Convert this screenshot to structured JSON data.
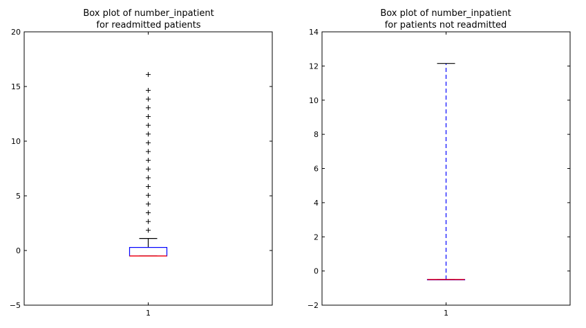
{
  "chart_data": [
    {
      "type": "box",
      "title": "Box plot of number_inpatient\nfor readmitted patients",
      "xticks": [
        "1"
      ],
      "ylim": [
        -5,
        20
      ],
      "yticks": [
        -5,
        0,
        5,
        10,
        15,
        20
      ],
      "box": {
        "whisker_low": -0.5,
        "q1": -0.5,
        "median": -0.5,
        "q3": 0.28,
        "whisker_high": 1.1
      },
      "outliers": [
        1.85,
        2.65,
        3.45,
        4.25,
        5.05,
        5.85,
        6.65,
        7.45,
        8.25,
        9.05,
        9.85,
        10.65,
        11.45,
        12.25,
        13.05,
        13.85,
        14.65,
        16.1
      ],
      "colors": {
        "box": "#0000ff",
        "median": "#ff0000",
        "whisker": "#000000",
        "cap": "#000000",
        "outlier": "#000000"
      }
    },
    {
      "type": "box",
      "title": "Box plot of number_inpatient\nfor patients not readmitted",
      "xticks": [
        "1"
      ],
      "ylim": [
        -2,
        14
      ],
      "yticks": [
        -2,
        0,
        2,
        4,
        6,
        8,
        10,
        12,
        14
      ],
      "box": {
        "whisker_low": -0.5,
        "q1": -0.5,
        "median": -0.5,
        "q3": -0.5,
        "whisker_high": 12.15
      },
      "outliers": [],
      "colors": {
        "box": "#0000ff",
        "median": "#ff0000",
        "whisker": "#0000ff",
        "cap": "#000000",
        "outlier": "#000000"
      }
    }
  ]
}
